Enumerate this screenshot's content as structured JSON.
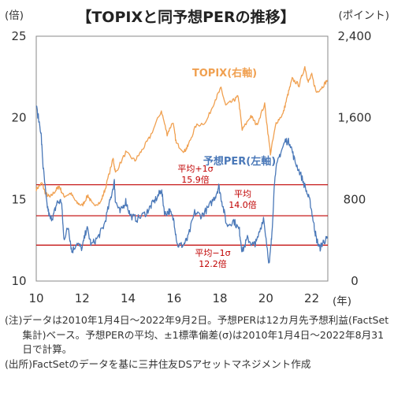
{
  "chart_data": {
    "type": "line",
    "title": "【TOPIXと同予想PERの推移】",
    "left_unit": "(倍)",
    "right_unit": "(ポイント)",
    "x_unit": "(年)",
    "left_axis": {
      "range": [
        10,
        25
      ],
      "ticks": [
        "10",
        "15",
        "20",
        "25"
      ]
    },
    "right_axis": {
      "range": [
        0,
        2400
      ],
      "ticks": [
        "0",
        "800",
        "1,600",
        "2,400"
      ]
    },
    "x_axis": {
      "range": [
        2010.0,
        2022.7
      ],
      "ticks": [
        "10",
        "12",
        "14",
        "16",
        "18",
        "20",
        "22"
      ],
      "tick_values": [
        2010,
        2012,
        2014,
        2016,
        2018,
        2020,
        2022
      ]
    },
    "grid": false,
    "series": [
      {
        "name": "TOPIX(右軸)",
        "axis": "right",
        "color": "#f0a050",
        "points": [
          [
            2010.0,
            900
          ],
          [
            2010.25,
            960
          ],
          [
            2010.4,
            860
          ],
          [
            2010.6,
            820
          ],
          [
            2010.85,
            890
          ],
          [
            2011.0,
            930
          ],
          [
            2011.2,
            830
          ],
          [
            2011.5,
            860
          ],
          [
            2011.75,
            770
          ],
          [
            2012.0,
            740
          ],
          [
            2012.25,
            840
          ],
          [
            2012.45,
            750
          ],
          [
            2012.8,
            770
          ],
          [
            2013.0,
            900
          ],
          [
            2013.35,
            1200
          ],
          [
            2013.45,
            1060
          ],
          [
            2013.9,
            1260
          ],
          [
            2014.3,
            1180
          ],
          [
            2014.6,
            1280
          ],
          [
            2014.95,
            1410
          ],
          [
            2015.45,
            1670
          ],
          [
            2015.7,
            1440
          ],
          [
            2015.95,
            1560
          ],
          [
            2016.1,
            1350
          ],
          [
            2016.45,
            1270
          ],
          [
            2016.6,
            1320
          ],
          [
            2016.95,
            1520
          ],
          [
            2017.4,
            1560
          ],
          [
            2017.8,
            1780
          ],
          [
            2018.05,
            1890
          ],
          [
            2018.25,
            1720
          ],
          [
            2018.6,
            1770
          ],
          [
            2018.8,
            1810
          ],
          [
            2018.97,
            1480
          ],
          [
            2019.35,
            1620
          ],
          [
            2019.6,
            1530
          ],
          [
            2019.95,
            1730
          ],
          [
            2020.2,
            1250
          ],
          [
            2020.45,
            1550
          ],
          [
            2020.75,
            1640
          ],
          [
            2020.95,
            1820
          ],
          [
            2021.15,
            1980
          ],
          [
            2021.45,
            1920
          ],
          [
            2021.7,
            2100
          ],
          [
            2021.85,
            1950
          ],
          [
            2022.0,
            2020
          ],
          [
            2022.2,
            1850
          ],
          [
            2022.45,
            1900
          ],
          [
            2022.68,
            1970
          ]
        ]
      },
      {
        "name": "予想PER(左軸)",
        "axis": "left",
        "color": "#4a78b8",
        "points": [
          [
            2010.0,
            20.7
          ],
          [
            2010.2,
            19.2
          ],
          [
            2010.3,
            17.0
          ],
          [
            2010.45,
            14.8
          ],
          [
            2010.6,
            13.8
          ],
          [
            2010.75,
            14.0
          ],
          [
            2010.9,
            14.8
          ],
          [
            2011.1,
            14.9
          ],
          [
            2011.2,
            12.6
          ],
          [
            2011.4,
            13.3
          ],
          [
            2011.55,
            11.8
          ],
          [
            2011.75,
            12.3
          ],
          [
            2012.0,
            12.0
          ],
          [
            2012.2,
            13.3
          ],
          [
            2012.4,
            12.2
          ],
          [
            2012.7,
            12.7
          ],
          [
            2012.95,
            13.4
          ],
          [
            2013.2,
            14.8
          ],
          [
            2013.4,
            16.1
          ],
          [
            2013.45,
            14.9
          ],
          [
            2013.65,
            14.2
          ],
          [
            2013.9,
            14.9
          ],
          [
            2014.1,
            14.0
          ],
          [
            2014.4,
            13.8
          ],
          [
            2014.8,
            14.2
          ],
          [
            2015.0,
            14.6
          ],
          [
            2015.3,
            15.2
          ],
          [
            2015.45,
            15.6
          ],
          [
            2015.6,
            14.1
          ],
          [
            2015.8,
            14.3
          ],
          [
            2016.0,
            13.7
          ],
          [
            2016.15,
            12.2
          ],
          [
            2016.4,
            12.2
          ],
          [
            2016.6,
            12.6
          ],
          [
            2016.9,
            14.2
          ],
          [
            2017.2,
            14.0
          ],
          [
            2017.5,
            14.5
          ],
          [
            2017.8,
            15.2
          ],
          [
            2017.95,
            15.8
          ],
          [
            2018.1,
            14.8
          ],
          [
            2018.3,
            13.4
          ],
          [
            2018.6,
            13.7
          ],
          [
            2018.85,
            13.1
          ],
          [
            2018.97,
            11.8
          ],
          [
            2019.2,
            12.6
          ],
          [
            2019.45,
            12.2
          ],
          [
            2019.6,
            12.4
          ],
          [
            2019.9,
            13.9
          ],
          [
            2020.15,
            11.0
          ],
          [
            2020.25,
            12.6
          ],
          [
            2020.4,
            16.6
          ],
          [
            2020.6,
            17.7
          ],
          [
            2020.85,
            18.6
          ],
          [
            2021.05,
            18.5
          ],
          [
            2021.25,
            17.4
          ],
          [
            2021.5,
            16.6
          ],
          [
            2021.75,
            15.6
          ],
          [
            2021.95,
            14.7
          ],
          [
            2022.1,
            13.4
          ],
          [
            2022.2,
            12.6
          ],
          [
            2022.35,
            12.0
          ],
          [
            2022.5,
            12.4
          ],
          [
            2022.68,
            12.6
          ]
        ]
      }
    ],
    "reference_lines": [
      {
        "name": "平均+1σ",
        "value": 15.9,
        "value_label": "15.9倍"
      },
      {
        "name": "平均",
        "value": 14.0,
        "value_label": "14.0倍"
      },
      {
        "name": "平均−1σ",
        "value": 12.2,
        "value_label": "12.2倍"
      }
    ],
    "reference_color": "#c00000"
  },
  "notes": {
    "note_label": "(注)",
    "note_text": "データは2010年1月4日〜2022年9月2日。予想PERは12カ月先予想利益(FactSet集計)ベース。予想PERの平均、±1標準偏差(σ)は2010年1月4日〜2022年8月31日で計算。",
    "source_label": "(出所)",
    "source_text": "FactSetのデータを基に三井住友DSアセットマネジメント作成"
  }
}
